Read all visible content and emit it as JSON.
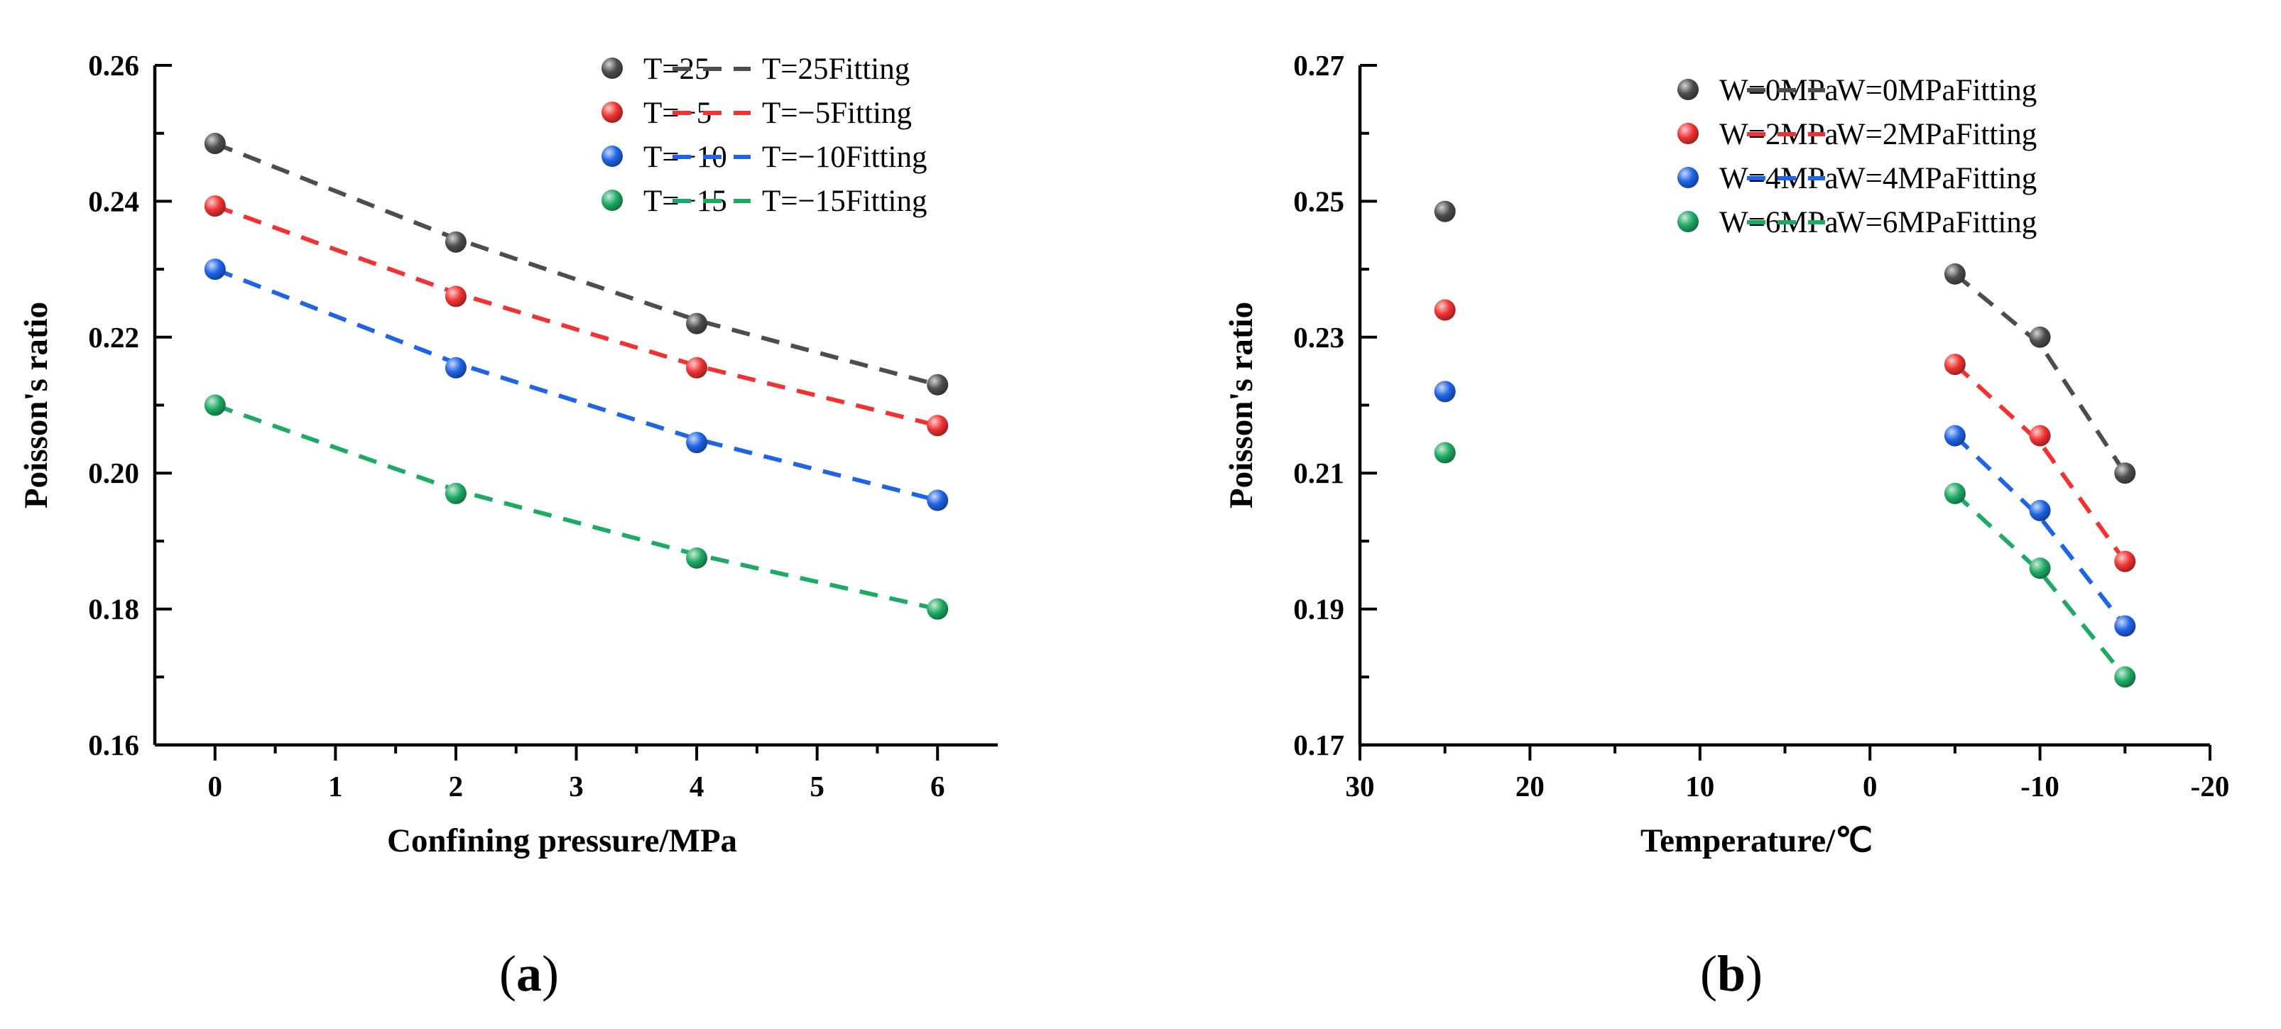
{
  "chart_data": [
    {
      "type": "scatter",
      "panel_label": "a",
      "xlabel": "Confining pressure/MPa",
      "ylabel": "Poisson's ratio",
      "xlim": [
        -0.5,
        6.5
      ],
      "ylim": [
        0.16,
        0.26
      ],
      "xticks": [
        0,
        1,
        2,
        3,
        4,
        5,
        6
      ],
      "yticks": [
        0.16,
        0.18,
        0.2,
        0.22,
        0.24,
        0.26
      ],
      "xtick_labels": [
        "0",
        "1",
        "2",
        "3",
        "4",
        "5",
        "6"
      ],
      "ytick_labels": [
        "0.16",
        "0.18",
        "0.20",
        "0.22",
        "0.24",
        "0.26"
      ],
      "legend_position": "top-right",
      "series": [
        {
          "name": "T=25",
          "fit_name": "T=25Fitting",
          "color": "#4d4d4d",
          "x": [
            0,
            2,
            4,
            6
          ],
          "y": [
            0.2485,
            0.234,
            0.222,
            0.213
          ],
          "fit_x": [
            0,
            2,
            4,
            6
          ],
          "fit_y": [
            0.2485,
            0.2345,
            0.2225,
            0.213
          ]
        },
        {
          "name": "T=−5",
          "fit_name": "T=−5Fitting",
          "color": "#f03232",
          "x": [
            0,
            2,
            4,
            6
          ],
          "y": [
            0.2393,
            0.226,
            0.2155,
            0.207
          ],
          "fit_x": [
            0,
            2,
            4,
            6
          ],
          "fit_y": [
            0.2393,
            0.2265,
            0.2158,
            0.207
          ]
        },
        {
          "name": "T=−10",
          "fit_name": "T=−10Fitting",
          "color": "#1e64e6",
          "x": [
            0,
            2,
            4,
            6
          ],
          "y": [
            0.23,
            0.2155,
            0.2045,
            0.196
          ],
          "fit_x": [
            0,
            2,
            4,
            6
          ],
          "fit_y": [
            0.23,
            0.2162,
            0.205,
            0.196
          ]
        },
        {
          "name": "T=−15",
          "fit_name": "T=−15Fitting",
          "color": "#1eaa64",
          "x": [
            0,
            2,
            4,
            6
          ],
          "y": [
            0.21,
            0.197,
            0.1875,
            0.18
          ],
          "fit_x": [
            0,
            2,
            4,
            6
          ],
          "fit_y": [
            0.21,
            0.1975,
            0.188,
            0.18
          ]
        }
      ]
    },
    {
      "type": "scatter",
      "panel_label": "b",
      "xlabel": "Temperature/℃",
      "ylabel": "Poisson's ratio",
      "xlim": [
        30,
        -20
      ],
      "ylim": [
        0.17,
        0.27
      ],
      "xticks": [
        30,
        20,
        10,
        0,
        -10,
        -20
      ],
      "yticks": [
        0.17,
        0.19,
        0.21,
        0.23,
        0.25,
        0.27
      ],
      "xtick_labels": [
        "30",
        "20",
        "10",
        "0",
        "-10",
        "-20"
      ],
      "ytick_labels": [
        "0.17",
        "0.19",
        "0.21",
        "0.23",
        "0.25",
        "0.27"
      ],
      "legend_position": "top-right",
      "series": [
        {
          "name": "W=0MPa",
          "fit_name": "W=0MPaFitting",
          "color": "#4d4d4d",
          "x": [
            25,
            -5,
            -10,
            -15
          ],
          "y": [
            0.2485,
            0.2393,
            0.23,
            0.21
          ],
          "fit_x": [
            -5,
            -10,
            -15
          ],
          "fit_y": [
            0.2393,
            0.229,
            0.21
          ]
        },
        {
          "name": "W=2MPa",
          "fit_name": "W=2MPaFitting",
          "color": "#f03232",
          "x": [
            25,
            -5,
            -10,
            -15
          ],
          "y": [
            0.234,
            0.226,
            0.2155,
            0.197
          ],
          "fit_x": [
            -5,
            -10,
            -15
          ],
          "fit_y": [
            0.226,
            0.2145,
            0.197
          ]
        },
        {
          "name": "W=4MPa",
          "fit_name": "W=4MPaFitting",
          "color": "#1e64e6",
          "x": [
            25,
            -5,
            -10,
            -15
          ],
          "y": [
            0.222,
            0.2155,
            0.2045,
            0.1875
          ],
          "fit_x": [
            -5,
            -10,
            -15
          ],
          "fit_y": [
            0.2155,
            0.2035,
            0.1875
          ]
        },
        {
          "name": "W=6MPa",
          "fit_name": "W=6MPaFitting",
          "color": "#1eaa64",
          "x": [
            25,
            -5,
            -10,
            -15
          ],
          "y": [
            0.213,
            0.207,
            0.196,
            0.18
          ],
          "fit_x": [
            -5,
            -10,
            -15
          ],
          "fit_y": [
            0.207,
            0.1955,
            0.18
          ]
        }
      ]
    }
  ]
}
